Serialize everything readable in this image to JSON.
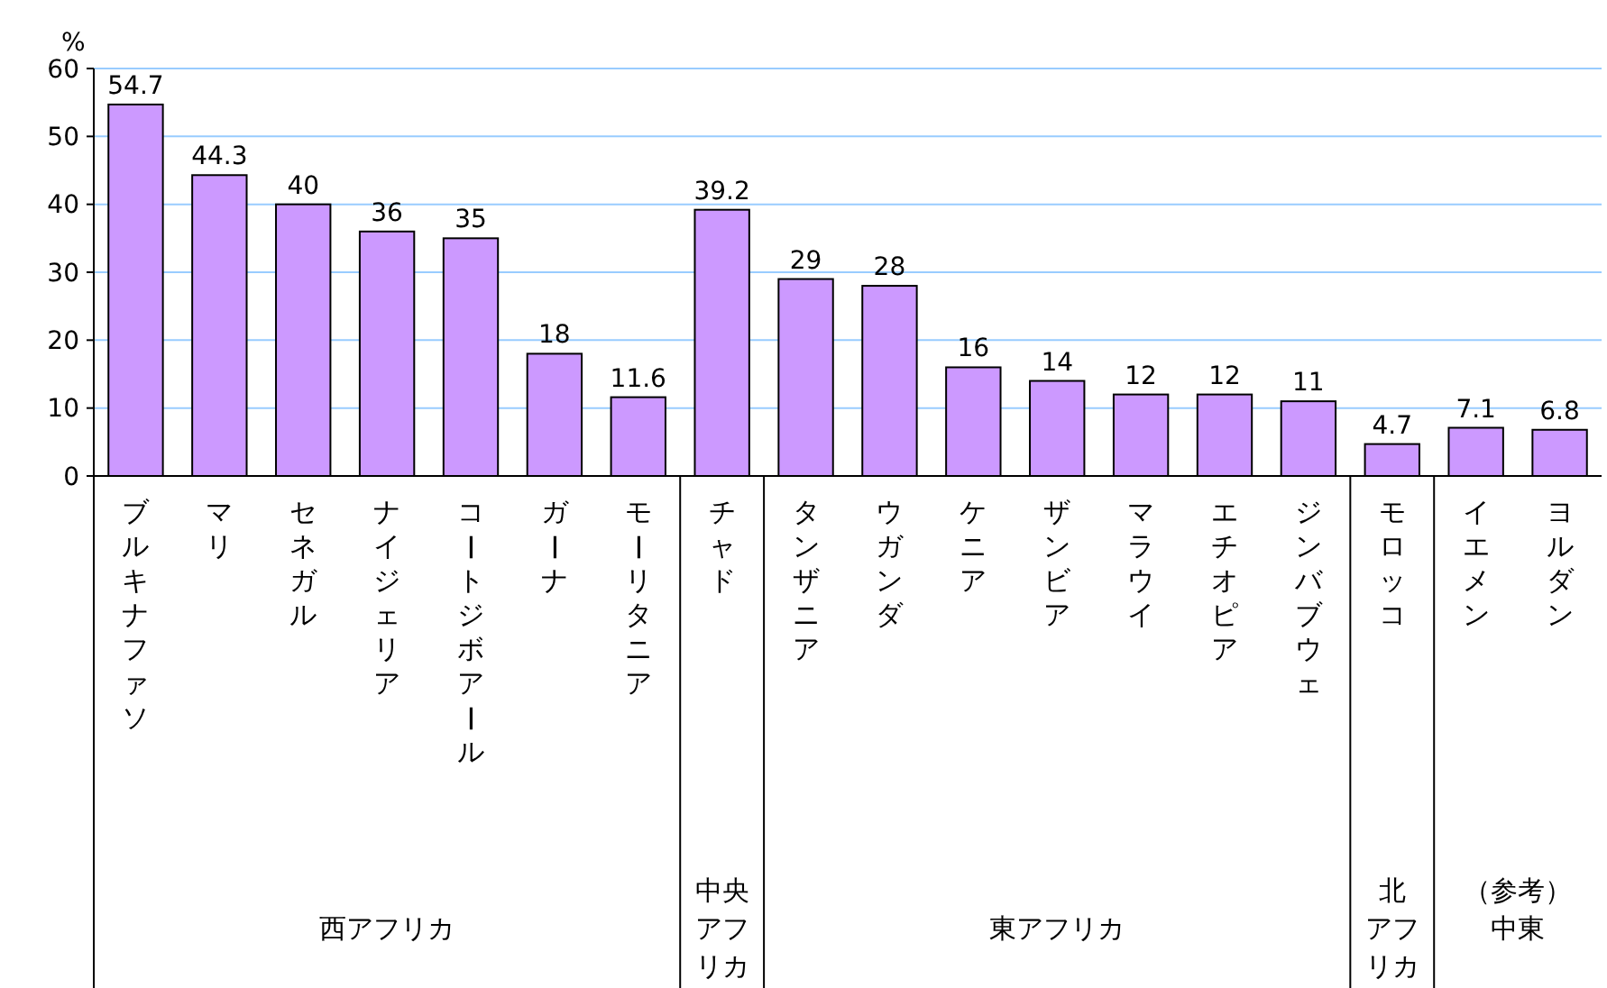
{
  "chart_data": {
    "type": "bar",
    "ylabel": "%",
    "categories": [
      "ブルキナファソ",
      "マリ",
      "セネガル",
      "ナイジェリア",
      "コートジボアール",
      "ガーナ",
      "モーリタニア",
      "チャド",
      "タンザニア",
      "ウガンダ",
      "ケニア",
      "ザンビア",
      "マラウイ",
      "エチオピア",
      "ジンバブウェ",
      "モロッコ",
      "イエメン",
      "ヨルダン"
    ],
    "values": [
      54.7,
      44.3,
      40,
      36,
      35,
      18,
      11.6,
      39.2,
      29,
      28,
      16,
      14,
      12,
      12,
      11,
      4.7,
      7.1,
      6.8
    ],
    "color": "#cc99ff",
    "data_labels": true,
    "ylim": [
      0,
      60
    ],
    "yticks": [
      0,
      10,
      20,
      30,
      40,
      50,
      60
    ],
    "grid": "y",
    "annotations": [
      "西アフリカ",
      "中央アフリカ",
      "東アフリカ",
      "北アフリカ",
      "（参考）中東"
    ]
  }
}
